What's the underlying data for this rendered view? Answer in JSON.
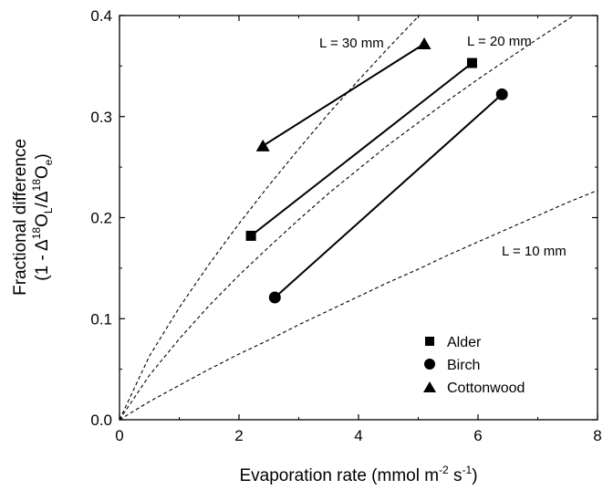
{
  "chart_data": {
    "type": "scatter",
    "xlabel": "Evaporation rate (mmol m",
    "xlabel_sup1": "-2",
    "xlabel_mid": " s",
    "xlabel_sup2": "-1",
    "xlabel_end": ")",
    "ylabel_line1": "Fractional difference",
    "ylabel_line2_a": "(1 - Δ",
    "ylabel_line2_sup1": "18",
    "ylabel_line2_b": "O",
    "ylabel_line2_sub1": "L",
    "ylabel_line2_c": "/Δ",
    "ylabel_line2_sup2": "18",
    "ylabel_line2_d": "O",
    "ylabel_line2_sub2": "e",
    "xlim": [
      0,
      8
    ],
    "ylim": [
      0,
      0.4
    ],
    "x_ticks": [
      {
        "value": 0,
        "label": "0"
      },
      {
        "value": 2,
        "label": "2"
      },
      {
        "value": 4,
        "label": "4"
      },
      {
        "value": 6,
        "label": "6"
      },
      {
        "value": 8,
        "label": "8"
      }
    ],
    "y_ticks": [
      {
        "value": 0,
        "label": "0.0"
      },
      {
        "value": 0.1,
        "label": "0.1"
      },
      {
        "value": 0.2,
        "label": "0.2"
      },
      {
        "value": 0.3,
        "label": "0.3"
      },
      {
        "value": 0.4,
        "label": "0.4"
      }
    ],
    "grid": false,
    "legend_position": "bottom-right",
    "series": [
      {
        "name": "Alder",
        "marker": "square",
        "points": [
          {
            "x": 2.2,
            "y": 0.182
          },
          {
            "x": 5.9,
            "y": 0.353
          }
        ]
      },
      {
        "name": "Birch",
        "marker": "circle",
        "points": [
          {
            "x": 2.6,
            "y": 0.121
          },
          {
            "x": 6.4,
            "y": 0.322
          }
        ]
      },
      {
        "name": "Cottonwood",
        "marker": "triangle",
        "points": [
          {
            "x": 2.4,
            "y": 0.271
          },
          {
            "x": 5.1,
            "y": 0.372
          }
        ]
      }
    ],
    "model_curves": [
      {
        "label": "L = 30 mm",
        "points": [
          [
            0,
            0
          ],
          [
            0.5,
            0.063
          ],
          [
            1,
            0.111
          ],
          [
            1.5,
            0.154
          ],
          [
            2,
            0.194
          ],
          [
            2.5,
            0.232
          ],
          [
            3,
            0.268
          ],
          [
            3.5,
            0.303
          ],
          [
            4,
            0.336
          ],
          [
            4.5,
            0.368
          ],
          [
            5,
            0.399
          ],
          [
            5.2,
            0.411
          ]
        ]
      },
      {
        "label": "L = 20 mm",
        "points": [
          [
            0,
            0
          ],
          [
            0.5,
            0.044
          ],
          [
            1,
            0.08
          ],
          [
            1.5,
            0.113
          ],
          [
            2,
            0.143
          ],
          [
            2.5,
            0.171
          ],
          [
            3,
            0.198
          ],
          [
            3.5,
            0.224
          ],
          [
            4,
            0.248
          ],
          [
            4.5,
            0.272
          ],
          [
            5,
            0.294
          ],
          [
            5.5,
            0.316
          ],
          [
            6,
            0.337
          ],
          [
            6.5,
            0.357
          ],
          [
            7,
            0.377
          ],
          [
            7.5,
            0.396
          ],
          [
            8,
            0.414
          ]
        ]
      },
      {
        "label": "L = 10 mm",
        "points": [
          [
            0,
            0
          ],
          [
            0.5,
            0.018
          ],
          [
            1,
            0.034
          ],
          [
            1.5,
            0.05
          ],
          [
            2,
            0.065
          ],
          [
            2.5,
            0.079
          ],
          [
            3,
            0.094
          ],
          [
            3.5,
            0.108
          ],
          [
            4,
            0.122
          ],
          [
            4.5,
            0.136
          ],
          [
            5,
            0.149
          ],
          [
            5.5,
            0.163
          ],
          [
            6,
            0.176
          ],
          [
            6.5,
            0.189
          ],
          [
            7,
            0.202
          ],
          [
            7.5,
            0.215
          ],
          [
            8,
            0.227
          ]
        ]
      }
    ]
  }
}
